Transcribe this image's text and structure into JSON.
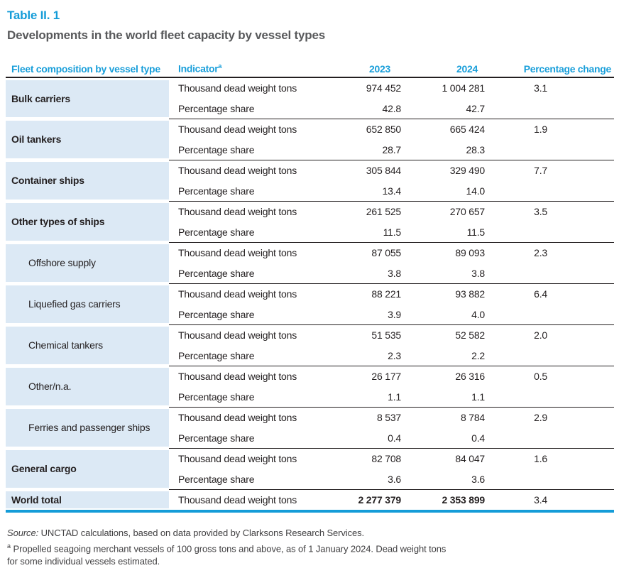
{
  "page": {
    "table_number": "Table II. 1",
    "title": "Developments in the world fleet capacity by vessel types"
  },
  "colors": {
    "accent_blue": "#149cd8",
    "vessel_column_bg": "#dce9f5",
    "text_dark": "#231f20",
    "title_gray": "#58595b"
  },
  "table": {
    "headers": {
      "fleet_composition": "Fleet composition by vessel type",
      "indicator": "Indicator",
      "indicator_footnote_mark": "a",
      "y2023": "2023",
      "y2024": "2024",
      "pct_change": "Percentage change"
    },
    "indicator_labels": {
      "dwt": "Thousand dead weight tons",
      "share": "Percentage share"
    },
    "groups": [
      {
        "label": "Bulk carriers",
        "dwt_2023": "974 452",
        "dwt_2024": "1 004 281",
        "pct_change": "3.1",
        "share_2023": "42.8",
        "share_2024": "42.7"
      },
      {
        "label": "Oil tankers",
        "dwt_2023": "652 850",
        "dwt_2024": "665 424",
        "pct_change": "1.9",
        "share_2023": "28.7",
        "share_2024": "28.3"
      },
      {
        "label": "Container ships",
        "dwt_2023": "305 844",
        "dwt_2024": "329 490",
        "pct_change": "7.7",
        "share_2023": "13.4",
        "share_2024": "14.0"
      },
      {
        "label": "Other types of ships",
        "dwt_2023": "261 525",
        "dwt_2024": "270 657",
        "pct_change": "3.5",
        "share_2023": "11.5",
        "share_2024": "11.5"
      },
      {
        "label": "Offshore supply",
        "dwt_2023": "87 055",
        "dwt_2024": "89 093",
        "pct_change": "2.3",
        "share_2023": "3.8",
        "share_2024": "3.8"
      },
      {
        "label": "Liquefied gas carriers",
        "dwt_2023": "88 221",
        "dwt_2024": "93 882",
        "pct_change": "6.4",
        "share_2023": "3.9",
        "share_2024": "4.0"
      },
      {
        "label": "Chemical tankers",
        "dwt_2023": "51 535",
        "dwt_2024": "52 582",
        "pct_change": "2.0",
        "share_2023": "2.3",
        "share_2024": "2.2"
      },
      {
        "label": "Other/n.a.",
        "dwt_2023": "26 177",
        "dwt_2024": "26 316",
        "pct_change": "0.5",
        "share_2023": "1.1",
        "share_2024": "1.1"
      },
      {
        "label": "Ferries and passenger ships",
        "dwt_2023": "8 537",
        "dwt_2024": "8 784",
        "pct_change": "2.9",
        "share_2023": "0.4",
        "share_2024": "0.4"
      },
      {
        "label": "General cargo",
        "dwt_2023": "82 708",
        "dwt_2024": "84 047",
        "pct_change": "1.6",
        "share_2023": "3.6",
        "share_2024": "3.6"
      }
    ],
    "total": {
      "label": "World total",
      "dwt_2023": "2 277 379",
      "dwt_2024": "2 353 899",
      "pct_change": "3.4"
    }
  },
  "footer": {
    "source_label": "Source:",
    "source_text": " UNCTAD calculations, based on data provided by Clarksons Research Services.",
    "footnote_mark": "a",
    "footnote_line1": " Propelled seagoing merchant vessels of 100 gross tons and above, as of 1 January 2024. Dead weight tons",
    "footnote_line2": "for some individual vessels estimated."
  },
  "chart_data": {
    "type": "table",
    "table_number": "Table II. 1",
    "title": "Developments in the world fleet capacity by vessel types",
    "columns": [
      "Fleet composition by vessel type",
      "Indicator",
      "2023",
      "2024",
      "Percentage change"
    ],
    "rows": [
      [
        "Bulk carriers",
        "Thousand dead weight tons",
        974452,
        1004281,
        3.1
      ],
      [
        "Bulk carriers",
        "Percentage share",
        42.8,
        42.7,
        null
      ],
      [
        "Oil tankers",
        "Thousand dead weight tons",
        652850,
        665424,
        1.9
      ],
      [
        "Oil tankers",
        "Percentage share",
        28.7,
        28.3,
        null
      ],
      [
        "Container ships",
        "Thousand dead weight tons",
        305844,
        329490,
        7.7
      ],
      [
        "Container ships",
        "Percentage share",
        13.4,
        14.0,
        null
      ],
      [
        "Other types of ships",
        "Thousand dead weight tons",
        261525,
        270657,
        3.5
      ],
      [
        "Other types of ships",
        "Percentage share",
        11.5,
        11.5,
        null
      ],
      [
        "Offshore supply",
        "Thousand dead weight tons",
        87055,
        89093,
        2.3
      ],
      [
        "Offshore supply",
        "Percentage share",
        3.8,
        3.8,
        null
      ],
      [
        "Liquefied gas carriers",
        "Thousand dead weight tons",
        88221,
        93882,
        6.4
      ],
      [
        "Liquefied gas carriers",
        "Percentage share",
        3.9,
        4.0,
        null
      ],
      [
        "Chemical tankers",
        "Thousand dead weight tons",
        51535,
        52582,
        2.0
      ],
      [
        "Chemical tankers",
        "Percentage share",
        2.3,
        2.2,
        null
      ],
      [
        "Other/n.a.",
        "Thousand dead weight tons",
        26177,
        26316,
        0.5
      ],
      [
        "Other/n.a.",
        "Percentage share",
        1.1,
        1.1,
        null
      ],
      [
        "Ferries and passenger ships",
        "Thousand dead weight tons",
        8537,
        8784,
        2.9
      ],
      [
        "Ferries and passenger ships",
        "Percentage share",
        0.4,
        0.4,
        null
      ],
      [
        "General cargo",
        "Thousand dead weight tons",
        82708,
        84047,
        1.6
      ],
      [
        "General cargo",
        "Percentage share",
        3.6,
        3.6,
        null
      ],
      [
        "World total",
        "Thousand dead weight tons",
        2277379,
        2353899,
        3.4
      ]
    ]
  }
}
